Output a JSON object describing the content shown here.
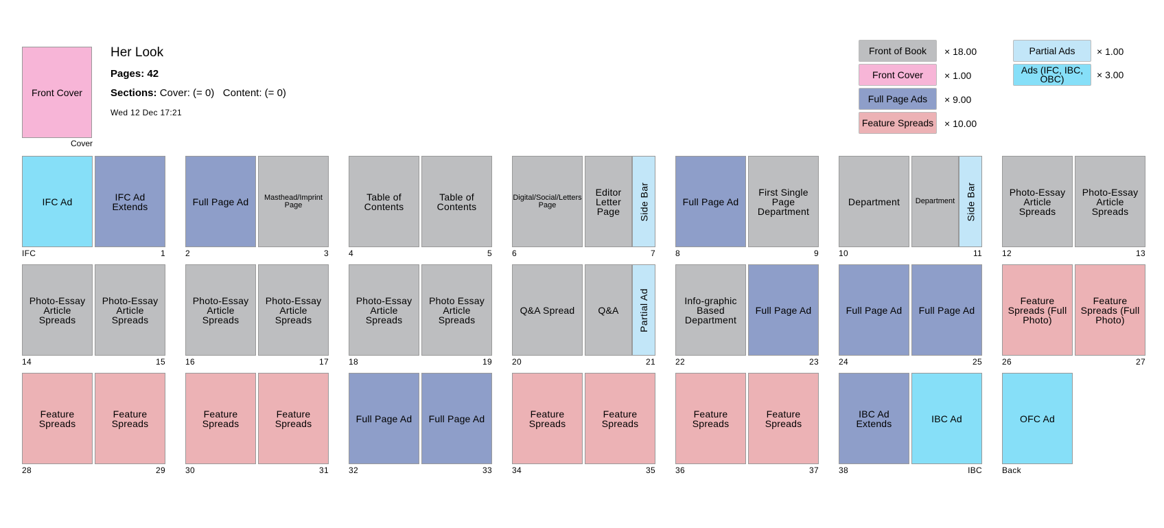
{
  "magazine": {
    "title": "Her Look",
    "pages_label": "Pages:",
    "pages_value": "42",
    "sections_label": "Sections:",
    "sections_text": "Cover: (= 0)   Content: (= 0)",
    "date": "Wed 12 Dec 17:21"
  },
  "cover": {
    "label": "Front Cover",
    "caption": "Cover"
  },
  "colors": {
    "front_of_book": "#bdbec0",
    "front_cover": "#f7b5d7",
    "full_page_ads": "#8e9ec9",
    "feature_spreads": "#ecb2b5",
    "partial_ads": "#c2e6f8",
    "ads_ifc_ibc_obc": "#86dff8"
  },
  "legend": [
    {
      "label": "Front of Book",
      "count": "× 18.00",
      "color": "#bdbec0"
    },
    {
      "label": "Front Cover",
      "count": "× 1.00",
      "color": "#f7b5d7"
    },
    {
      "label": "Full Page Ads",
      "count": "× 9.00",
      "color": "#8e9ec9"
    },
    {
      "label": "Feature Spreads",
      "count": "× 10.00",
      "color": "#ecb2b5"
    },
    {
      "label": "Partial Ads",
      "count": "× 1.00",
      "color": "#c2e6f8"
    },
    {
      "label": "Ads (IFC, IBC, OBC)",
      "count": "× 3.00",
      "color": "#86dff8"
    }
  ],
  "spreads": [
    {
      "left": {
        "label": "IFC Ad",
        "type": "ads_ifc_ibc_obc",
        "num": "IFC"
      },
      "right": {
        "label": "IFC Ad Extends",
        "type": "full_page_ads",
        "num": "1"
      }
    },
    {
      "left": {
        "label": "Full Page Ad",
        "type": "full_page_ads",
        "num": "2"
      },
      "right": {
        "label": "Masthead/Imprint Page",
        "type": "front_of_book",
        "num": "3",
        "small": true
      }
    },
    {
      "left": {
        "label": "Table of Contents",
        "type": "front_of_book",
        "num": "4"
      },
      "right": {
        "label": "Table of Contents",
        "type": "front_of_book",
        "num": "5"
      }
    },
    {
      "left": {
        "label": "Digital/Social/Letters Page",
        "type": "front_of_book",
        "num": "6",
        "small": true
      },
      "right": {
        "label": "Editor Letter Page",
        "type": "front_of_book",
        "num": "7",
        "sidebar": "Side Bar"
      }
    },
    {
      "left": {
        "label": "Full Page Ad",
        "type": "full_page_ads",
        "num": "8"
      },
      "right": {
        "label": "First Single Page Department",
        "type": "front_of_book",
        "num": "9"
      }
    },
    {
      "left": {
        "label": "Department",
        "type": "front_of_book",
        "num": "10"
      },
      "right": {
        "label": "Department",
        "type": "front_of_book",
        "num": "11",
        "sidebar": "Side Bar",
        "small": true
      }
    },
    {
      "left": {
        "label": "Photo-Essay Article Spreads",
        "type": "front_of_book",
        "num": "12"
      },
      "right": {
        "label": "Photo-Essay Article Spreads",
        "type": "front_of_book",
        "num": "13"
      }
    },
    {
      "left": {
        "label": "Photo-Essay Article Spreads",
        "type": "front_of_book",
        "num": "14"
      },
      "right": {
        "label": "Photo-Essay Article Spreads",
        "type": "front_of_book",
        "num": "15"
      }
    },
    {
      "left": {
        "label": "Photo-Essay Article Spreads",
        "type": "front_of_book",
        "num": "16"
      },
      "right": {
        "label": "Photo-Essay Article Spreads",
        "type": "front_of_book",
        "num": "17"
      }
    },
    {
      "left": {
        "label": "Photo-Essay Article Spreads",
        "type": "front_of_book",
        "num": "18"
      },
      "right": {
        "label": "Photo Essay Article Spreads",
        "type": "front_of_book",
        "num": "19"
      }
    },
    {
      "left": {
        "label": "Q&A Spread",
        "type": "front_of_book",
        "num": "20"
      },
      "right": {
        "label": "Q&A",
        "type": "front_of_book",
        "num": "21",
        "sidebar": "Partial Ad"
      }
    },
    {
      "left": {
        "label": "Info-graphic Based Department",
        "type": "front_of_book",
        "num": "22"
      },
      "right": {
        "label": "Full Page Ad",
        "type": "full_page_ads",
        "num": "23"
      }
    },
    {
      "left": {
        "label": "Full Page Ad",
        "type": "full_page_ads",
        "num": "24"
      },
      "right": {
        "label": "Full Page Ad",
        "type": "full_page_ads",
        "num": "25"
      }
    },
    {
      "left": {
        "label": "Feature Spreads (Full Photo)",
        "type": "feature_spreads",
        "num": "26"
      },
      "right": {
        "label": "Feature Spreads (Full Photo)",
        "type": "feature_spreads",
        "num": "27"
      }
    },
    {
      "left": {
        "label": "Feature Spreads",
        "type": "feature_spreads",
        "num": "28"
      },
      "right": {
        "label": "Feature Spreads",
        "type": "feature_spreads",
        "num": "29"
      }
    },
    {
      "left": {
        "label": "Feature Spreads",
        "type": "feature_spreads",
        "num": "30"
      },
      "right": {
        "label": "Feature Spreads",
        "type": "feature_spreads",
        "num": "31"
      }
    },
    {
      "left": {
        "label": "Full Page Ad",
        "type": "full_page_ads",
        "num": "32"
      },
      "right": {
        "label": "Full Page Ad",
        "type": "full_page_ads",
        "num": "33"
      }
    },
    {
      "left": {
        "label": "Feature Spreads",
        "type": "feature_spreads",
        "num": "34"
      },
      "right": {
        "label": "Feature Spreads",
        "type": "feature_spreads",
        "num": "35"
      }
    },
    {
      "left": {
        "label": "Feature Spreads",
        "type": "feature_spreads",
        "num": "36"
      },
      "right": {
        "label": "Feature Spreads",
        "type": "feature_spreads",
        "num": "37"
      }
    },
    {
      "left": {
        "label": "IBC Ad Extends",
        "type": "full_page_ads",
        "num": "38"
      },
      "right": {
        "label": "IBC Ad",
        "type": "ads_ifc_ibc_obc",
        "num": "IBC"
      }
    },
    {
      "left": {
        "label": "OFC Ad",
        "type": "ads_ifc_ibc_obc",
        "num": "Back"
      }
    }
  ]
}
